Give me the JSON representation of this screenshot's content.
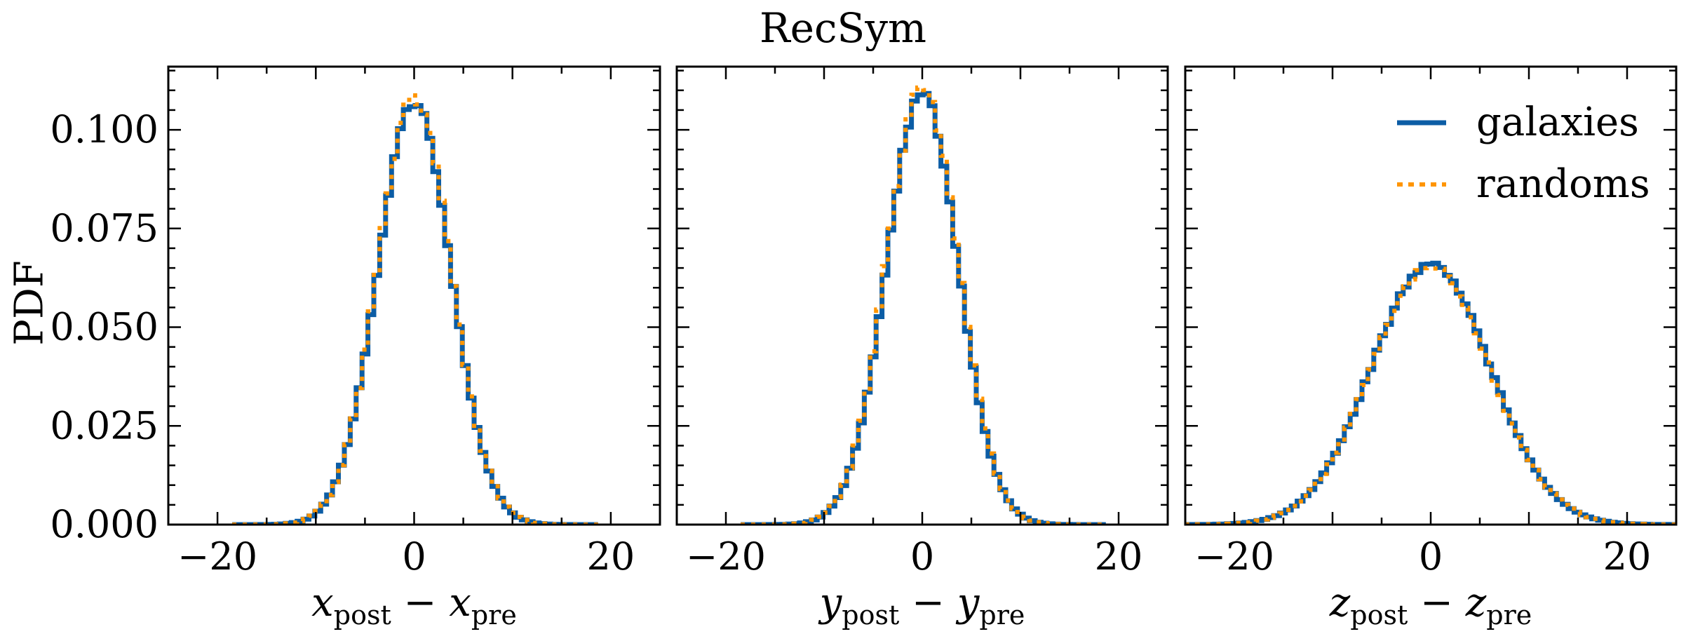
{
  "figure": {
    "title": "RecSym",
    "ylabel": "PDF"
  },
  "chart_data": [
    {
      "type": "line",
      "panel": "x",
      "xlabel_var": "x",
      "xlabel_sub1": "post",
      "xlabel_sub2": "pre",
      "xlim": [
        -25,
        25
      ],
      "ylim": [
        0,
        0.116
      ],
      "xticks": [
        -20,
        0,
        20
      ],
      "yticks": [
        0.0,
        0.025,
        0.05,
        0.075,
        0.1
      ],
      "ytick_labels": [
        "0.000",
        "0.025",
        "0.050",
        "0.075",
        "0.100"
      ],
      "show_yticklabels": true,
      "legend": false,
      "peak_value": 0.107,
      "sigma": 3.73,
      "support": [
        -18.5,
        18.5
      ],
      "series": [
        {
          "name": "galaxies",
          "color": "#0c5da5",
          "style": "solid",
          "peak": 0.107
        },
        {
          "name": "randoms",
          "color": "#ff9500",
          "style": "dotted",
          "peak": 0.108
        }
      ]
    },
    {
      "type": "line",
      "panel": "y",
      "xlabel_var": "y",
      "xlabel_sub1": "post",
      "xlabel_sub2": "pre",
      "xlim": [
        -25,
        25
      ],
      "ylim": [
        0,
        0.116
      ],
      "xticks": [
        -20,
        0,
        20
      ],
      "yticks": [
        0.0,
        0.025,
        0.05,
        0.075,
        0.1
      ],
      "ytick_labels": [
        "",
        "",
        "",
        "",
        ""
      ],
      "show_yticklabels": false,
      "legend": false,
      "peak_value": 0.109,
      "sigma": 3.66,
      "support": [
        -18.5,
        18.5
      ],
      "series": [
        {
          "name": "galaxies",
          "color": "#0c5da5",
          "style": "solid",
          "peak": 0.109
        },
        {
          "name": "randoms",
          "color": "#ff9500",
          "style": "dotted",
          "peak": 0.111
        }
      ]
    },
    {
      "type": "line",
      "panel": "z",
      "xlabel_var": "z",
      "xlabel_sub1": "post",
      "xlabel_sub2": "pre",
      "xlim": [
        -25,
        25
      ],
      "ylim": [
        0,
        0.116
      ],
      "xticks": [
        -20,
        0,
        20
      ],
      "yticks": [
        0.0,
        0.025,
        0.05,
        0.075,
        0.1
      ],
      "ytick_labels": [
        "",
        "",
        "",
        "",
        ""
      ],
      "show_yticklabels": false,
      "legend": true,
      "legend_position": "upper-right",
      "peak_value": 0.066,
      "sigma": 6.05,
      "support": [
        -25,
        25
      ],
      "series": [
        {
          "name": "galaxies",
          "color": "#0c5da5",
          "style": "solid",
          "peak": 0.066
        },
        {
          "name": "randoms",
          "color": "#ff9500",
          "style": "dotted",
          "peak": 0.0655
        }
      ]
    }
  ]
}
